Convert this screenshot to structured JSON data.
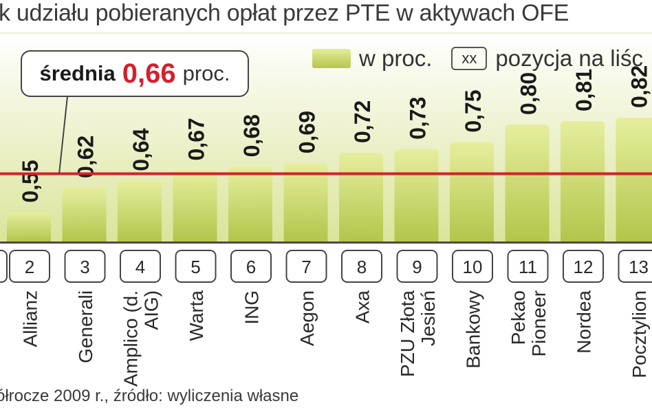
{
  "header": {
    "title": "k udziału pobieranych opłat przez PTE w aktywach OFE"
  },
  "legend": {
    "bar_label": "w proc.",
    "position_box": "xx",
    "position_label": "pozycja na liśc"
  },
  "average": {
    "label": "średnia",
    "value": "0,66",
    "unit": "proc."
  },
  "footnote": "ółrocze 2009 r., źródło: wyliczenia własne",
  "colors": {
    "background_top": "#ffffff",
    "background_bottom": "#dbe49a",
    "bar_top": "#e6ee9e",
    "bar_bottom": "#b4c44a",
    "average_line": "#d4202c",
    "average_value": "#d4202c",
    "axis_band": "#4a4a4a"
  },
  "chart_data": {
    "type": "bar",
    "title": "",
    "xlabel": "",
    "ylabel": "",
    "average": 0.66,
    "categories": [
      "Allianz",
      "Generali",
      "Amplico (d. AIG)",
      "Warta",
      "ING",
      "Aegon",
      "Axa",
      "PZU Złota Jesień",
      "Bankowy",
      "Pekao Pioneer",
      "Nordea",
      "Pocztylion"
    ],
    "positions": [
      2,
      3,
      4,
      5,
      6,
      7,
      8,
      9,
      10,
      11,
      12,
      13
    ],
    "value_labels": [
      "0,55",
      "0,62",
      "0,64",
      "0,67",
      "0,68",
      "0,69",
      "0,72",
      "0,73",
      "0,75",
      "0,80",
      "0,81",
      "0,82"
    ],
    "series": [
      {
        "values": [
          0.55,
          0.62,
          0.64,
          0.67,
          0.68,
          0.69,
          0.72,
          0.73,
          0.75,
          0.8,
          0.81,
          0.82
        ]
      }
    ]
  }
}
